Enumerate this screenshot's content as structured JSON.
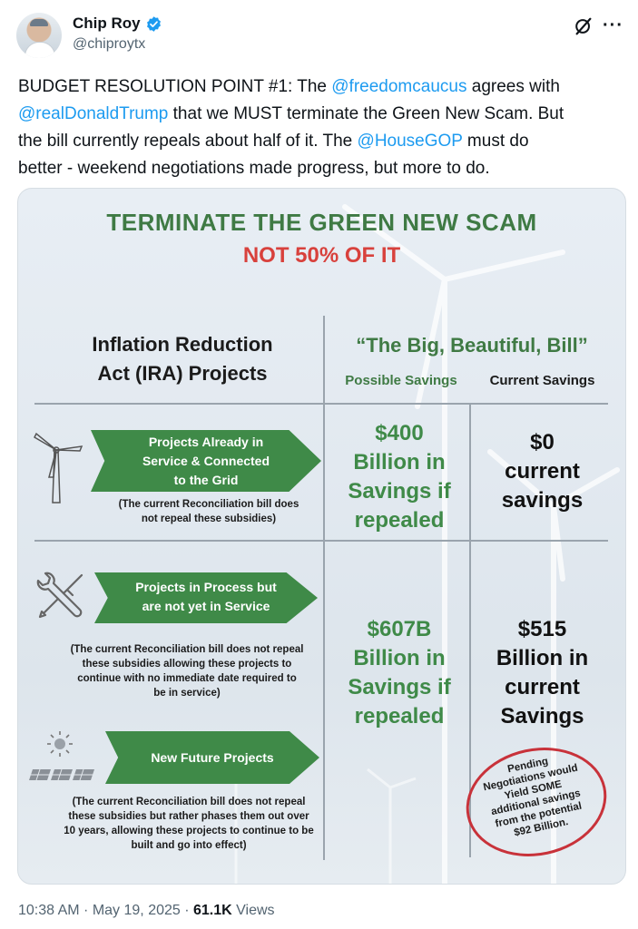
{
  "author": {
    "name": "Chip Roy",
    "handle": "@chiproytx"
  },
  "icons": {
    "verified": "verified-badge-icon",
    "grok": "grok-icon",
    "more": "more-options-icon"
  },
  "tweet": {
    "line1_pre": "BUDGET RESOLUTION POINT #1:  The ",
    "mention1": "@freedomcaucus",
    "line1_post": " agrees with",
    "mention2": "@realDonaldTrump",
    "line2_post": " that we MUST terminate the Green New Scam.  But",
    "line3_pre": "the bill currently repeals about half of it.  The ",
    "mention3": "@HouseGOP",
    "line3_post": " must do",
    "line4": "better - weekend negotiations made progress, but more to do."
  },
  "graphic": {
    "title": "TERMINATE THE GREEN NEW SCAM",
    "subtitle": "NOT 50% OF IT",
    "left_header_line1": "Inflation Reduction",
    "left_header_line2": "Act (IRA) Projects",
    "right_header": "“The Big, Beautiful, Bill”",
    "col_possible": "Possible Savings",
    "col_current": "Current Savings",
    "rows": [
      {
        "arrow_lines": [
          "Projects Already in",
          "Service & Connected",
          "to the Grid"
        ],
        "note_lines": [
          "(The current Reconciliation bill does",
          "not repeal these subsidies)"
        ],
        "possible_lines": [
          "$400",
          "Billion in",
          "Savings if",
          "repealed"
        ],
        "current_lines": [
          "$0",
          "current",
          "savings"
        ]
      },
      {
        "arrow_lines": [
          "Projects in Process but",
          "are not yet in Service"
        ],
        "note_lines": [
          "(The current Reconciliation bill does not repeal",
          "these subsidies allowing these projects to",
          "continue with no immediate date required to",
          "be in service)"
        ],
        "possible_lines": [
          "$607B",
          "Billion in",
          "Savings if",
          "repealed"
        ],
        "current_lines": [
          "$515",
          "Billion in",
          "current",
          "Savings"
        ]
      },
      {
        "arrow_lines": [
          "New Future Projects"
        ],
        "note_lines": [
          "(The current Reconciliation bill does not repeal",
          "these subsidies but rather phases them out over",
          "10 years, allowing these projects to continue to be",
          "built and go into effect)"
        ]
      }
    ],
    "stamp_lines": [
      "Pending",
      "Negotiations would",
      "Yield SOME",
      "additional savings",
      "from the potential",
      "$92 Billion."
    ]
  },
  "footer": {
    "time": "10:38 AM",
    "dot": " · ",
    "date": "May 19, 2025",
    "views_count": "61.1K",
    "views_label": " Views"
  },
  "colors": {
    "green": "#3f8a48",
    "title_green": "#3f7a44",
    "red": "#d8413c",
    "link": "#1d9bf0"
  }
}
